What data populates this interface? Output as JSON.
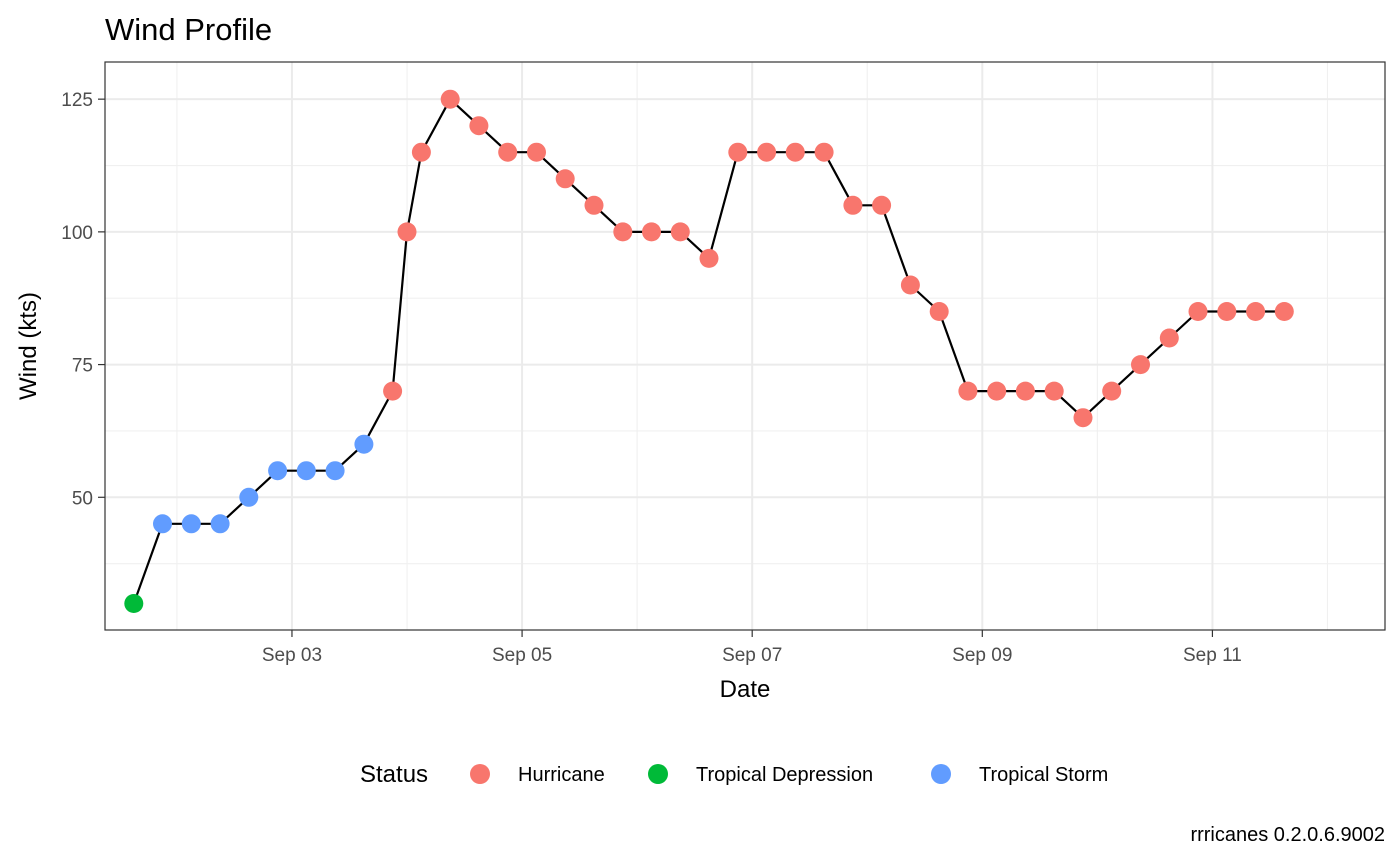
{
  "chart_data": {
    "type": "scatter",
    "title": "Wind Profile",
    "xlabel": "Date",
    "ylabel": "Wind (kts)",
    "caption": "rrricanes 0.2.0.6.9002",
    "x_ticks": [
      {
        "date": "2017-09-03",
        "label": "Sep 03"
      },
      {
        "date": "2017-09-05",
        "label": "Sep 05"
      },
      {
        "date": "2017-09-07",
        "label": "Sep 07"
      },
      {
        "date": "2017-09-09",
        "label": "Sep 09"
      },
      {
        "date": "2017-09-11",
        "label": "Sep 11"
      }
    ],
    "xlim": [
      "2017-09-01 09:00",
      "2017-09-12 12:00"
    ],
    "y_ticks": [
      50,
      75,
      100,
      125
    ],
    "ylim": [
      25,
      132
    ],
    "grid": true,
    "line_connects_points": true,
    "legend": {
      "title": "Status",
      "position": "bottom",
      "entries": [
        {
          "name": "Hurricane",
          "color": "#F8766D"
        },
        {
          "name": "Tropical Depression",
          "color": "#00BA38"
        },
        {
          "name": "Tropical Storm",
          "color": "#619CFF"
        }
      ]
    },
    "points": [
      {
        "x": "2017-09-01 15:00",
        "y": 30,
        "status": "Tropical Depression"
      },
      {
        "x": "2017-09-01 21:00",
        "y": 45,
        "status": "Tropical Storm"
      },
      {
        "x": "2017-09-02 03:00",
        "y": 45,
        "status": "Tropical Storm"
      },
      {
        "x": "2017-09-02 09:00",
        "y": 45,
        "status": "Tropical Storm"
      },
      {
        "x": "2017-09-02 15:00",
        "y": 50,
        "status": "Tropical Storm"
      },
      {
        "x": "2017-09-02 21:00",
        "y": 55,
        "status": "Tropical Storm"
      },
      {
        "x": "2017-09-03 03:00",
        "y": 55,
        "status": "Tropical Storm"
      },
      {
        "x": "2017-09-03 09:00",
        "y": 55,
        "status": "Tropical Storm"
      },
      {
        "x": "2017-09-03 15:00",
        "y": 60,
        "status": "Tropical Storm"
      },
      {
        "x": "2017-09-03 21:00",
        "y": 70,
        "status": "Hurricane"
      },
      {
        "x": "2017-09-04 00:00",
        "y": 100,
        "status": "Hurricane"
      },
      {
        "x": "2017-09-04 03:00",
        "y": 115,
        "status": "Hurricane"
      },
      {
        "x": "2017-09-04 09:00",
        "y": 125,
        "status": "Hurricane"
      },
      {
        "x": "2017-09-04 15:00",
        "y": 120,
        "status": "Hurricane"
      },
      {
        "x": "2017-09-04 21:00",
        "y": 115,
        "status": "Hurricane"
      },
      {
        "x": "2017-09-05 03:00",
        "y": 115,
        "status": "Hurricane"
      },
      {
        "x": "2017-09-05 09:00",
        "y": 110,
        "status": "Hurricane"
      },
      {
        "x": "2017-09-05 15:00",
        "y": 105,
        "status": "Hurricane"
      },
      {
        "x": "2017-09-05 21:00",
        "y": 100,
        "status": "Hurricane"
      },
      {
        "x": "2017-09-06 03:00",
        "y": 100,
        "status": "Hurricane"
      },
      {
        "x": "2017-09-06 09:00",
        "y": 100,
        "status": "Hurricane"
      },
      {
        "x": "2017-09-06 15:00",
        "y": 95,
        "status": "Hurricane"
      },
      {
        "x": "2017-09-06 21:00",
        "y": 115,
        "status": "Hurricane"
      },
      {
        "x": "2017-09-07 03:00",
        "y": 115,
        "status": "Hurricane"
      },
      {
        "x": "2017-09-07 09:00",
        "y": 115,
        "status": "Hurricane"
      },
      {
        "x": "2017-09-07 15:00",
        "y": 115,
        "status": "Hurricane"
      },
      {
        "x": "2017-09-07 21:00",
        "y": 105,
        "status": "Hurricane"
      },
      {
        "x": "2017-09-08 03:00",
        "y": 105,
        "status": "Hurricane"
      },
      {
        "x": "2017-09-08 09:00",
        "y": 90,
        "status": "Hurricane"
      },
      {
        "x": "2017-09-08 15:00",
        "y": 85,
        "status": "Hurricane"
      },
      {
        "x": "2017-09-08 21:00",
        "y": 70,
        "status": "Hurricane"
      },
      {
        "x": "2017-09-09 03:00",
        "y": 70,
        "status": "Hurricane"
      },
      {
        "x": "2017-09-09 09:00",
        "y": 70,
        "status": "Hurricane"
      },
      {
        "x": "2017-09-09 15:00",
        "y": 70,
        "status": "Hurricane"
      },
      {
        "x": "2017-09-09 21:00",
        "y": 65,
        "status": "Hurricane"
      },
      {
        "x": "2017-09-10 03:00",
        "y": 70,
        "status": "Hurricane"
      },
      {
        "x": "2017-09-10 09:00",
        "y": 75,
        "status": "Hurricane"
      },
      {
        "x": "2017-09-10 15:00",
        "y": 80,
        "status": "Hurricane"
      },
      {
        "x": "2017-09-10 21:00",
        "y": 85,
        "status": "Hurricane"
      },
      {
        "x": "2017-09-11 03:00",
        "y": 85,
        "status": "Hurricane"
      },
      {
        "x": "2017-09-11 09:00",
        "y": 85,
        "status": "Hurricane"
      },
      {
        "x": "2017-09-11 15:00",
        "y": 85,
        "status": "Hurricane"
      }
    ]
  }
}
